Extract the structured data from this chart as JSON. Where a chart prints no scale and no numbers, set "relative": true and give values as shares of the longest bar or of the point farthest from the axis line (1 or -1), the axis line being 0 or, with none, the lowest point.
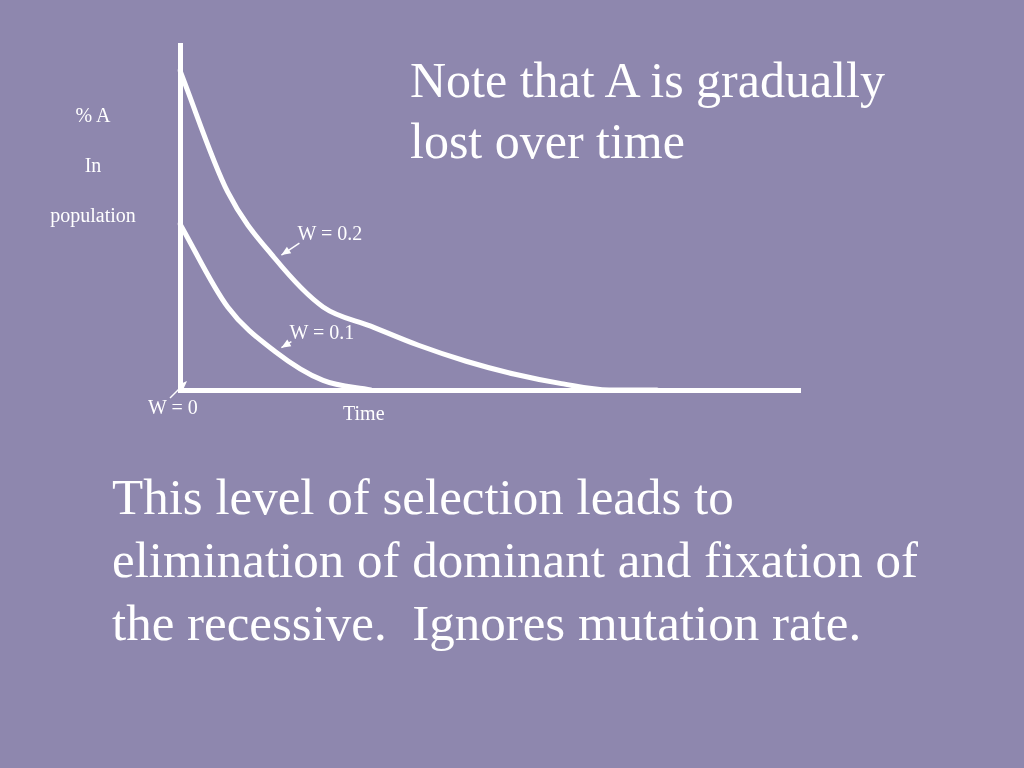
{
  "chart_data": {
    "type": "line",
    "title": "Note that A is gradually lost over time",
    "xlabel": "Time",
    "ylabel": "% A\nIn\npopulation",
    "relative": true,
    "marker": "none",
    "categories": [
      null,
      null,
      null,
      null,
      null,
      null,
      null,
      null,
      null,
      null,
      null,
      null,
      null,
      null
    ],
    "series": [
      {
        "name": "W = 0.2",
        "color": "#ffffff",
        "values": [
          1,
          0.62,
          0.41,
          0.26,
          0.2,
          0.14,
          0.09,
          0.05,
          0.02,
          0,
          0,
          null,
          null,
          null
        ]
      },
      {
        "name": "W = 0.1",
        "color": "#ffffff",
        "values": [
          0.52,
          0.26,
          0.12,
          0.03,
          0,
          null,
          null,
          null,
          null,
          null,
          null,
          null,
          null,
          null
        ]
      }
    ],
    "annotations": [
      "This level of selection leads to elimination of dominant and fixation of the recessive.  Ignores mutation rate.",
      "W = 0"
    ]
  }
}
